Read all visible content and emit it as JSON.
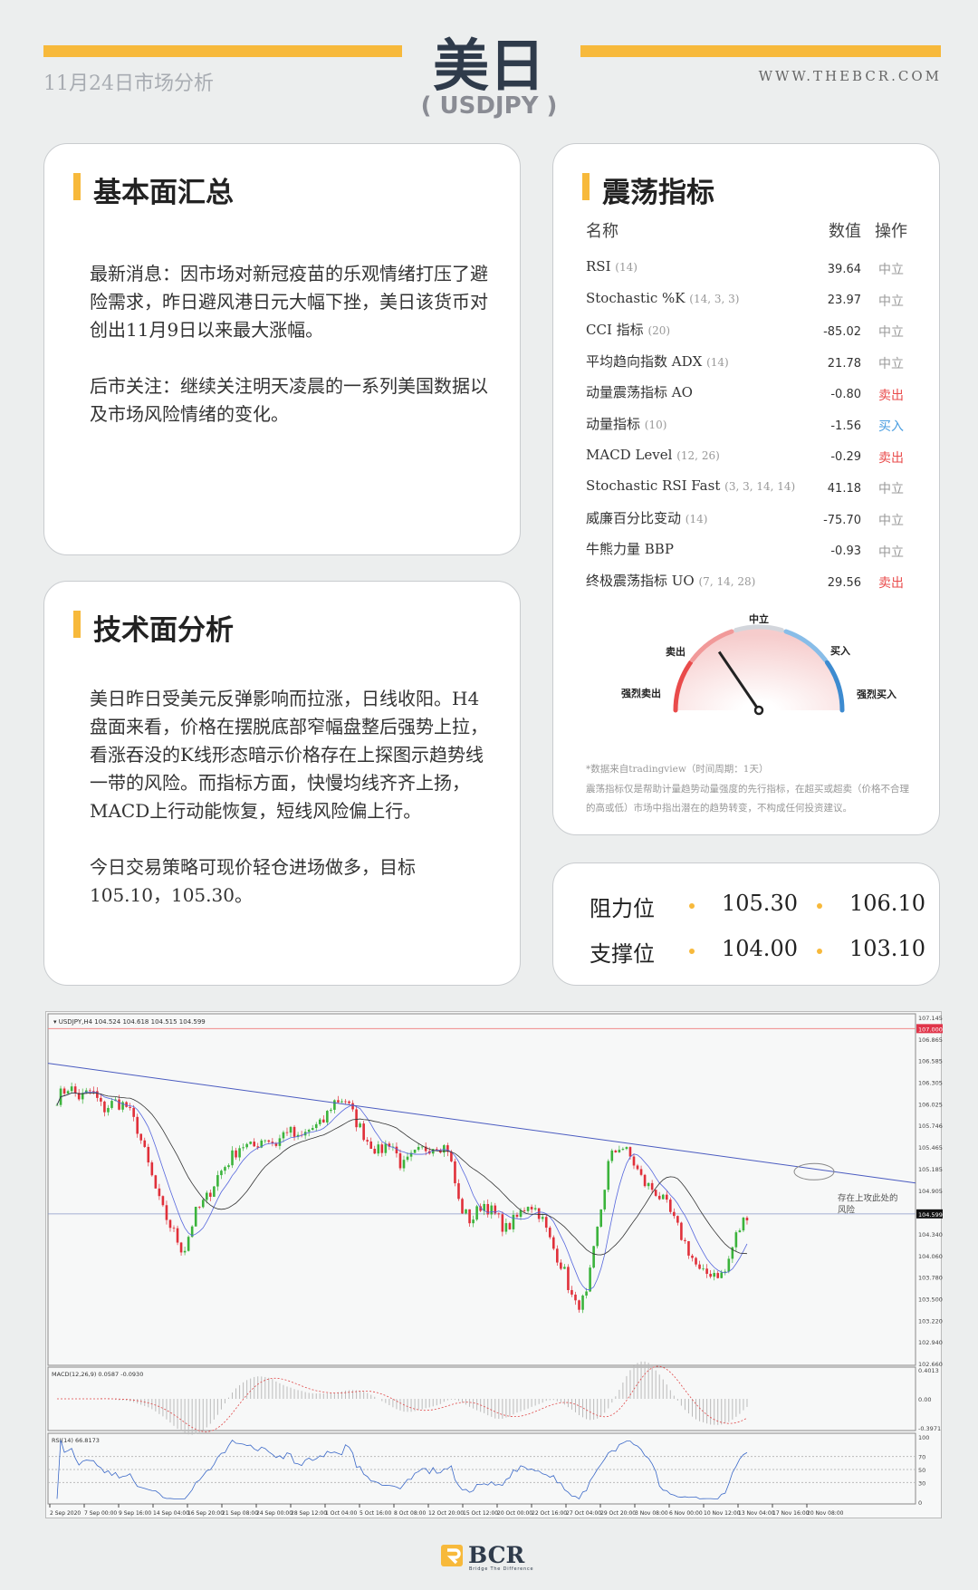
{
  "header": {
    "title": "美日",
    "pair": "( USDJPY )",
    "date": "11月24日市场分析",
    "site": "WWW.THEBCR.COM"
  },
  "fundamental": {
    "title": "基本面汇总",
    "paragraphs": [
      "最新消息：因市场对新冠疫苗的乐观情绪打压了避险需求，昨日避风港日元大幅下挫，美日该货币对创出11月9日以来最大涨幅。",
      "后市关注：继续关注明天凌晨的一系列美国数据以及市场风险情绪的变化。"
    ]
  },
  "technical": {
    "title": "技术面分析",
    "paragraphs": [
      "美日昨日受美元反弹影响而拉涨，日线收阳。H4盘面来看，价格在摆脱底部窄幅盘整后强势上拉，看涨吞没的K线形态暗示价格存在上探图示趋势线一带的风险。而指标方面，快慢均线齐齐上扬，MACD上行动能恢复，短线风险偏上行。",
      "今日交易策略可现价轻仓进场做多，目标105.10，105.30。"
    ]
  },
  "oscillators": {
    "title": "震荡指标",
    "headers": {
      "name": "名称",
      "value": "数值",
      "action": "操作"
    },
    "rows": [
      {
        "name": "RSI",
        "params": "(14)",
        "value": "39.64",
        "action": "中立"
      },
      {
        "name": "Stochastic %K",
        "params": "(14, 3, 3)",
        "value": "23.97",
        "action": "中立"
      },
      {
        "name": "CCI 指标",
        "params": "(20)",
        "value": "-85.02",
        "action": "中立"
      },
      {
        "name": "平均趋向指数 ADX",
        "params": "(14)",
        "value": "21.78",
        "action": "中立"
      },
      {
        "name": "动量震荡指标 AO",
        "params": "",
        "value": "-0.80",
        "action": "卖出"
      },
      {
        "name": "动量指标",
        "params": "(10)",
        "value": "-1.56",
        "action": "买入"
      },
      {
        "name": "MACD Level",
        "params": "(12, 26)",
        "value": "-0.29",
        "action": "卖出"
      },
      {
        "name": "Stochastic RSI Fast",
        "params": "(3, 3, 14, 14)",
        "value": "41.18",
        "action": "中立"
      },
      {
        "name": "威廉百分比变动",
        "params": "(14)",
        "value": "-75.70",
        "action": "中立"
      },
      {
        "name": "牛熊力量 BBP",
        "params": "",
        "value": "-0.93",
        "action": "中立"
      },
      {
        "name": "终极震荡指标 UO",
        "params": "(7, 14, 28)",
        "value": "29.56",
        "action": "卖出"
      }
    ],
    "action_colors": {
      "中立": "#999999",
      "卖出": "#e94b4b",
      "买入": "#4a9ee0"
    },
    "gauge": {
      "labels": {
        "strong_sell": "强烈卖出",
        "sell": "卖出",
        "neutral": "中立",
        "buy": "买入",
        "strong_buy": "强烈买入"
      },
      "level": 0.31
    },
    "source": "*数据来自tradingview（时间周期：1天）",
    "disclaimer": "震荡指标仅是帮助计量趋势动量强度的先行指标，在超买或超卖（价格不合理的高或低）市场中指出潜在的趋势转变，不构成任何投资建议。"
  },
  "levels": {
    "resistance_label": "阻力位",
    "support_label": "支撑位",
    "resistance": [
      "105.30",
      "106.10"
    ],
    "support": [
      "104.00",
      "103.10"
    ]
  },
  "chart_data": {
    "type": "candlestick",
    "symbol_header": "USDJPY,H4  104.524 104.618 104.515 104.599",
    "y_ticks": [
      "107.145",
      "106.865",
      "106.585",
      "106.305",
      "106.025",
      "105.746",
      "105.465",
      "105.185",
      "104.905",
      "104.340",
      "104.060",
      "103.780",
      "103.500",
      "103.220",
      "102.940",
      "102.660"
    ],
    "ylim": [
      102.66,
      107.145
    ],
    "current_price": "104.599",
    "marker_price": "107.000",
    "x_ticks": [
      "2 Sep 2020",
      "7 Sep 00:00",
      "9 Sep 16:00",
      "14 Sep 04:00",
      "16 Sep 20:00",
      "21 Sep 08:00",
      "24 Sep 00:00",
      "28 Sep 12:00",
      "1 Oct 04:00",
      "5 Oct 16:00",
      "8 Oct 08:00",
      "12 Oct 20:00",
      "15 Oct 12:00",
      "20 Oct 00:00",
      "22 Oct 16:00",
      "27 Oct 04:00",
      "29 Oct 20:00",
      "3 Nov 08:00",
      "6 Nov 00:00",
      "10 Nov 12:00",
      "13 Nov 04:00",
      "17 Nov 16:00",
      "20 Nov 08:00"
    ],
    "close_approx": [
      106.1,
      106.25,
      106.1,
      106.2,
      105.95,
      106.05,
      106.0,
      105.7,
      105.2,
      104.7,
      104.4,
      104.1,
      104.6,
      104.8,
      105.1,
      105.3,
      105.5,
      105.45,
      105.6,
      105.5,
      105.7,
      105.55,
      105.7,
      105.75,
      106.05,
      106.1,
      105.8,
      105.55,
      105.4,
      105.55,
      105.2,
      105.35,
      105.45,
      105.5,
      105.45,
      104.7,
      104.5,
      104.75,
      104.6,
      104.4,
      104.55,
      104.75,
      104.6,
      104.2,
      103.9,
      103.4,
      103.5,
      104.4,
      105.3,
      105.5,
      105.3,
      105.0,
      104.9,
      104.7,
      104.4,
      104.1,
      103.8,
      103.85,
      103.8,
      104.3,
      104.6
    ],
    "trendline": [
      106.55,
      105.0
    ],
    "annotation": "存在上攻此处的风险",
    "macd_label": "MACD(12,26,9) 0.0587 -0.0930",
    "macd_ticks": [
      "0.4013",
      "0.00",
      "-0.3971"
    ],
    "rsi_label": "RSI(14) 66.8173",
    "rsi_ticks": [
      "100",
      "70",
      "50",
      "30",
      "0"
    ]
  },
  "footer": {
    "logo": "BCR",
    "tagline": "Bridge The Difference"
  }
}
